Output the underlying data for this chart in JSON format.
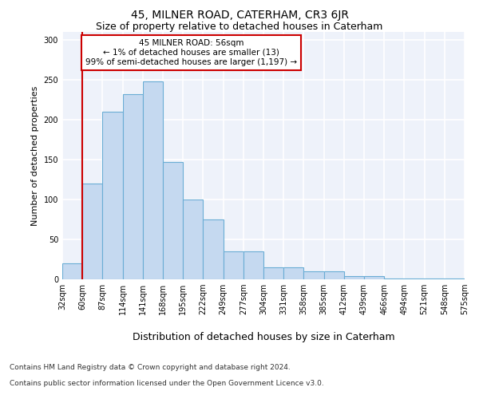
{
  "title1": "45, MILNER ROAD, CATERHAM, CR3 6JR",
  "title2": "Size of property relative to detached houses in Caterham",
  "xlabel": "Distribution of detached houses by size in Caterham",
  "ylabel": "Number of detached properties",
  "bin_labels": [
    "32sqm",
    "60sqm",
    "87sqm",
    "114sqm",
    "141sqm",
    "168sqm",
    "195sqm",
    "222sqm",
    "249sqm",
    "277sqm",
    "304sqm",
    "331sqm",
    "358sqm",
    "385sqm",
    "412sqm",
    "439sqm",
    "466sqm",
    "494sqm",
    "521sqm",
    "548sqm",
    "575sqm"
  ],
  "bar_heights": [
    20,
    120,
    210,
    232,
    248,
    147,
    100,
    75,
    35,
    35,
    15,
    15,
    10,
    10,
    4,
    4,
    1,
    1,
    1,
    1
  ],
  "bar_color": "#c5d9f0",
  "bar_edge_color": "#6aadd5",
  "annotation_text": "45 MILNER ROAD: 56sqm\n← 1% of detached houses are smaller (13)\n99% of semi-detached houses are larger (1,197) →",
  "annotation_box_color": "#ffffff",
  "annotation_box_edge": "#cc0000",
  "red_line_color": "#cc0000",
  "footer1": "Contains HM Land Registry data © Crown copyright and database right 2024.",
  "footer2": "Contains public sector information licensed under the Open Government Licence v3.0.",
  "ylim": [
    0,
    310
  ],
  "yticks": [
    0,
    50,
    100,
    150,
    200,
    250,
    300
  ],
  "bg_color": "#eef2fa",
  "grid_color": "#ffffff",
  "title1_fontsize": 10,
  "title2_fontsize": 9
}
